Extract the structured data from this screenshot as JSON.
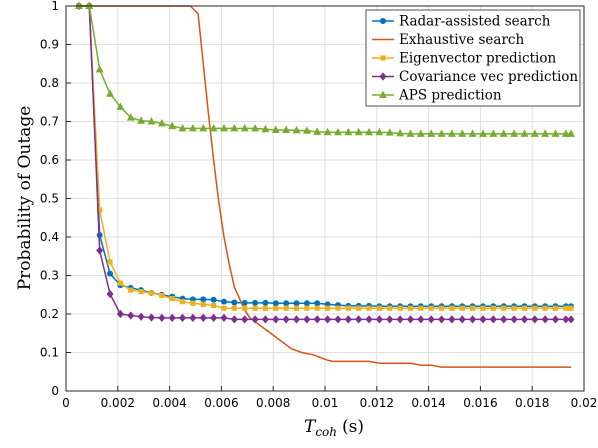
{
  "chart_data": {
    "type": "line",
    "xlabel": "T",
    "xlabel_sub": "coh",
    "xlabel_unit": "(s)",
    "ylabel": "Probability of Outage",
    "xlim": [
      0,
      0.02
    ],
    "ylim": [
      0,
      1
    ],
    "x_ticks": [
      "0",
      "0.002",
      "0.004",
      "0.006",
      "0.008",
      "0.01",
      "0.012",
      "0.014",
      "0.016",
      "0.018",
      "0.02"
    ],
    "y_ticks": [
      "0",
      "0.1",
      "0.2",
      "0.3",
      "0.4",
      "0.5",
      "0.6",
      "0.7",
      "0.8",
      "0.9",
      "1"
    ],
    "grid": true,
    "legend_position": "top-right",
    "series": [
      {
        "name": "Radar-assisted search",
        "color": "#0072BD",
        "marker": "circle",
        "x": [
          0.0005,
          0.0009,
          0.0013,
          0.0017,
          0.0021,
          0.0025,
          0.0029,
          0.0033,
          0.0037,
          0.0041,
          0.0045,
          0.0049,
          0.0053,
          0.0057,
          0.0061,
          0.0065,
          0.0069,
          0.0073,
          0.0077,
          0.0081,
          0.0085,
          0.0089,
          0.0093,
          0.0097,
          0.0101,
          0.0105,
          0.0109,
          0.0113,
          0.0117,
          0.0121,
          0.0125,
          0.0129,
          0.0133,
          0.0137,
          0.0141,
          0.0145,
          0.0149,
          0.0153,
          0.0157,
          0.0161,
          0.0165,
          0.0169,
          0.0173,
          0.0177,
          0.0181,
          0.0185,
          0.0189,
          0.0193,
          0.0195
        ],
        "y": [
          1,
          1,
          0.405,
          0.305,
          0.275,
          0.268,
          0.262,
          0.255,
          0.25,
          0.245,
          0.24,
          0.238,
          0.238,
          0.237,
          0.232,
          0.23,
          0.229,
          0.229,
          0.229,
          0.228,
          0.228,
          0.228,
          0.228,
          0.228,
          0.225,
          0.223,
          0.221,
          0.221,
          0.221,
          0.22,
          0.22,
          0.22,
          0.22,
          0.22,
          0.22,
          0.22,
          0.22,
          0.22,
          0.22,
          0.22,
          0.22,
          0.22,
          0.22,
          0.22,
          0.22,
          0.22,
          0.22,
          0.22,
          0.22
        ]
      },
      {
        "name": "Exhaustive search",
        "color": "#D95319",
        "marker": "none",
        "x": [
          0.0005,
          0.0009,
          0.0013,
          0.002,
          0.003,
          0.004,
          0.0048,
          0.0051,
          0.0053,
          0.0055,
          0.0057,
          0.0059,
          0.0061,
          0.0063,
          0.0065,
          0.0067,
          0.0069,
          0.0071,
          0.0073,
          0.0075,
          0.0077,
          0.0079,
          0.0081,
          0.0083,
          0.0085,
          0.0087,
          0.0089,
          0.0091,
          0.0093,
          0.0095,
          0.0097,
          0.0099,
          0.0101,
          0.0103,
          0.0105,
          0.0107,
          0.0109,
          0.0113,
          0.0117,
          0.0121,
          0.0125,
          0.0129,
          0.0133,
          0.0137,
          0.0141,
          0.0145,
          0.0149,
          0.0153,
          0.0157,
          0.0161,
          0.0165,
          0.0169,
          0.0173,
          0.0177,
          0.0181,
          0.0185,
          0.0189,
          0.0193,
          0.0195
        ],
        "y": [
          1,
          1,
          1,
          1,
          1,
          1,
          1,
          0.98,
          0.85,
          0.72,
          0.6,
          0.49,
          0.4,
          0.33,
          0.27,
          0.24,
          0.21,
          0.19,
          0.18,
          0.17,
          0.16,
          0.15,
          0.14,
          0.13,
          0.12,
          0.11,
          0.105,
          0.1,
          0.097,
          0.095,
          0.09,
          0.085,
          0.08,
          0.077,
          0.077,
          0.077,
          0.077,
          0.077,
          0.077,
          0.072,
          0.072,
          0.072,
          0.072,
          0.067,
          0.067,
          0.062,
          0.062,
          0.062,
          0.062,
          0.062,
          0.062,
          0.062,
          0.062,
          0.062,
          0.062,
          0.062,
          0.062,
          0.062,
          0.062
        ]
      },
      {
        "name": "Eigenvector prediction",
        "color": "#EDB120",
        "marker": "square",
        "x": [
          0.0005,
          0.0009,
          0.0013,
          0.0017,
          0.0021,
          0.0025,
          0.0029,
          0.0033,
          0.0037,
          0.0041,
          0.0045,
          0.0049,
          0.0053,
          0.0057,
          0.0061,
          0.0065,
          0.0069,
          0.0073,
          0.0077,
          0.0081,
          0.0085,
          0.0089,
          0.0093,
          0.0097,
          0.0101,
          0.0105,
          0.0109,
          0.0113,
          0.0117,
          0.0121,
          0.0125,
          0.0129,
          0.0133,
          0.0137,
          0.0141,
          0.0145,
          0.0149,
          0.0153,
          0.0157,
          0.0161,
          0.0165,
          0.0169,
          0.0173,
          0.0177,
          0.0181,
          0.0185,
          0.0189,
          0.0193,
          0.0195
        ],
        "y": [
          1,
          1,
          0.47,
          0.335,
          0.28,
          0.262,
          0.258,
          0.255,
          0.248,
          0.24,
          0.232,
          0.228,
          0.225,
          0.222,
          0.215,
          0.215,
          0.215,
          0.215,
          0.215,
          0.215,
          0.215,
          0.215,
          0.215,
          0.215,
          0.215,
          0.215,
          0.215,
          0.215,
          0.215,
          0.215,
          0.215,
          0.215,
          0.215,
          0.215,
          0.215,
          0.215,
          0.215,
          0.215,
          0.215,
          0.215,
          0.215,
          0.215,
          0.215,
          0.215,
          0.215,
          0.215,
          0.215,
          0.215,
          0.215
        ]
      },
      {
        "name": "Covariance vec prediction",
        "color": "#7E2F8E",
        "marker": "diamond",
        "x": [
          0.0005,
          0.0009,
          0.0013,
          0.0017,
          0.0021,
          0.0025,
          0.0029,
          0.0033,
          0.0037,
          0.0041,
          0.0045,
          0.0049,
          0.0053,
          0.0057,
          0.0061,
          0.0065,
          0.0069,
          0.0073,
          0.0077,
          0.0081,
          0.0085,
          0.0089,
          0.0093,
          0.0097,
          0.0101,
          0.0105,
          0.0109,
          0.0113,
          0.0117,
          0.0121,
          0.0125,
          0.0129,
          0.0133,
          0.0137,
          0.0141,
          0.0145,
          0.0149,
          0.0153,
          0.0157,
          0.0161,
          0.0165,
          0.0169,
          0.0173,
          0.0177,
          0.0181,
          0.0185,
          0.0189,
          0.0193,
          0.0195
        ],
        "y": [
          1,
          1,
          0.365,
          0.252,
          0.2,
          0.196,
          0.193,
          0.191,
          0.19,
          0.19,
          0.19,
          0.19,
          0.19,
          0.19,
          0.19,
          0.186,
          0.186,
          0.186,
          0.186,
          0.186,
          0.186,
          0.186,
          0.186,
          0.186,
          0.186,
          0.186,
          0.186,
          0.186,
          0.186,
          0.186,
          0.186,
          0.186,
          0.186,
          0.186,
          0.186,
          0.186,
          0.186,
          0.186,
          0.186,
          0.186,
          0.186,
          0.186,
          0.186,
          0.186,
          0.186,
          0.186,
          0.186,
          0.186,
          0.186
        ]
      },
      {
        "name": "APS prediction",
        "color": "#77AC30",
        "marker": "triangle",
        "x": [
          0.0005,
          0.0009,
          0.0013,
          0.0017,
          0.0021,
          0.0025,
          0.0029,
          0.0033,
          0.0037,
          0.0041,
          0.0045,
          0.0049,
          0.0053,
          0.0057,
          0.0061,
          0.0065,
          0.0069,
          0.0073,
          0.0077,
          0.0081,
          0.0085,
          0.0089,
          0.0093,
          0.0097,
          0.0101,
          0.0105,
          0.0109,
          0.0113,
          0.0117,
          0.0121,
          0.0125,
          0.0129,
          0.0133,
          0.0137,
          0.0141,
          0.0145,
          0.0149,
          0.0153,
          0.0157,
          0.0161,
          0.0165,
          0.0169,
          0.0173,
          0.0177,
          0.0181,
          0.0185,
          0.0189,
          0.0193,
          0.0195
        ],
        "y": [
          1,
          1,
          0.835,
          0.772,
          0.738,
          0.71,
          0.702,
          0.7,
          0.695,
          0.688,
          0.682,
          0.682,
          0.682,
          0.682,
          0.682,
          0.682,
          0.682,
          0.682,
          0.68,
          0.678,
          0.678,
          0.677,
          0.676,
          0.673,
          0.672,
          0.672,
          0.672,
          0.672,
          0.672,
          0.672,
          0.671,
          0.669,
          0.668,
          0.668,
          0.668,
          0.668,
          0.668,
          0.668,
          0.668,
          0.668,
          0.668,
          0.668,
          0.668,
          0.668,
          0.668,
          0.668,
          0.668,
          0.668,
          0.668
        ]
      }
    ]
  }
}
